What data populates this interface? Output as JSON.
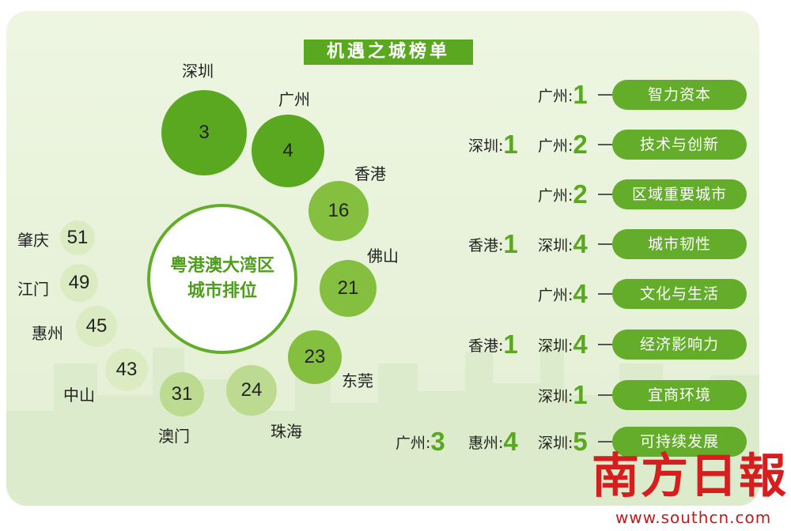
{
  "title": "机遇之城榜单",
  "center": {
    "line1": "粤港澳大湾区",
    "line2": "城市排位"
  },
  "colors": {
    "dark": "#5aa820",
    "mid": "#85bf3f",
    "light": "#bcdb90",
    "pale": "#dbecc3",
    "accent": "#5aa820"
  },
  "chart_data": [
    {
      "type": "bubble",
      "title": "粤港澳大湾区城市排位",
      "categories": [
        "深圳",
        "广州",
        "香港",
        "佛山",
        "东莞",
        "珠海",
        "澳门",
        "中山",
        "惠州",
        "江门",
        "肇庆"
      ],
      "values": [
        3,
        4,
        16,
        21,
        23,
        24,
        31,
        43,
        45,
        49,
        51
      ]
    },
    {
      "type": "table",
      "title": "机遇之城榜单",
      "rows": [
        {
          "dimension": "智力资本",
          "leaders": [
            {
              "city": "广州",
              "rank": 1
            }
          ]
        },
        {
          "dimension": "技术与创新",
          "leaders": [
            {
              "city": "深圳",
              "rank": 1
            },
            {
              "city": "广州",
              "rank": 2
            }
          ]
        },
        {
          "dimension": "区域重要城市",
          "leaders": [
            {
              "city": "广州",
              "rank": 2
            }
          ]
        },
        {
          "dimension": "城市韧性",
          "leaders": [
            {
              "city": "香港",
              "rank": 1
            },
            {
              "city": "深圳",
              "rank": 4
            }
          ]
        },
        {
          "dimension": "文化与生活",
          "leaders": [
            {
              "city": "广州",
              "rank": 4
            }
          ]
        },
        {
          "dimension": "经济影响力",
          "leaders": [
            {
              "city": "香港",
              "rank": 1
            },
            {
              "city": "深圳",
              "rank": 4
            }
          ]
        },
        {
          "dimension": "宜商环境",
          "leaders": [
            {
              "city": "深圳",
              "rank": 1
            }
          ]
        },
        {
          "dimension": "可持续发展",
          "leaders": [
            {
              "city": "广州",
              "rank": 3
            },
            {
              "city": "惠州",
              "rank": 4
            },
            {
              "city": "深圳",
              "rank": 5
            }
          ]
        }
      ]
    }
  ],
  "logo": {
    "text": "南方日報",
    "site": "www.southcn.com"
  }
}
